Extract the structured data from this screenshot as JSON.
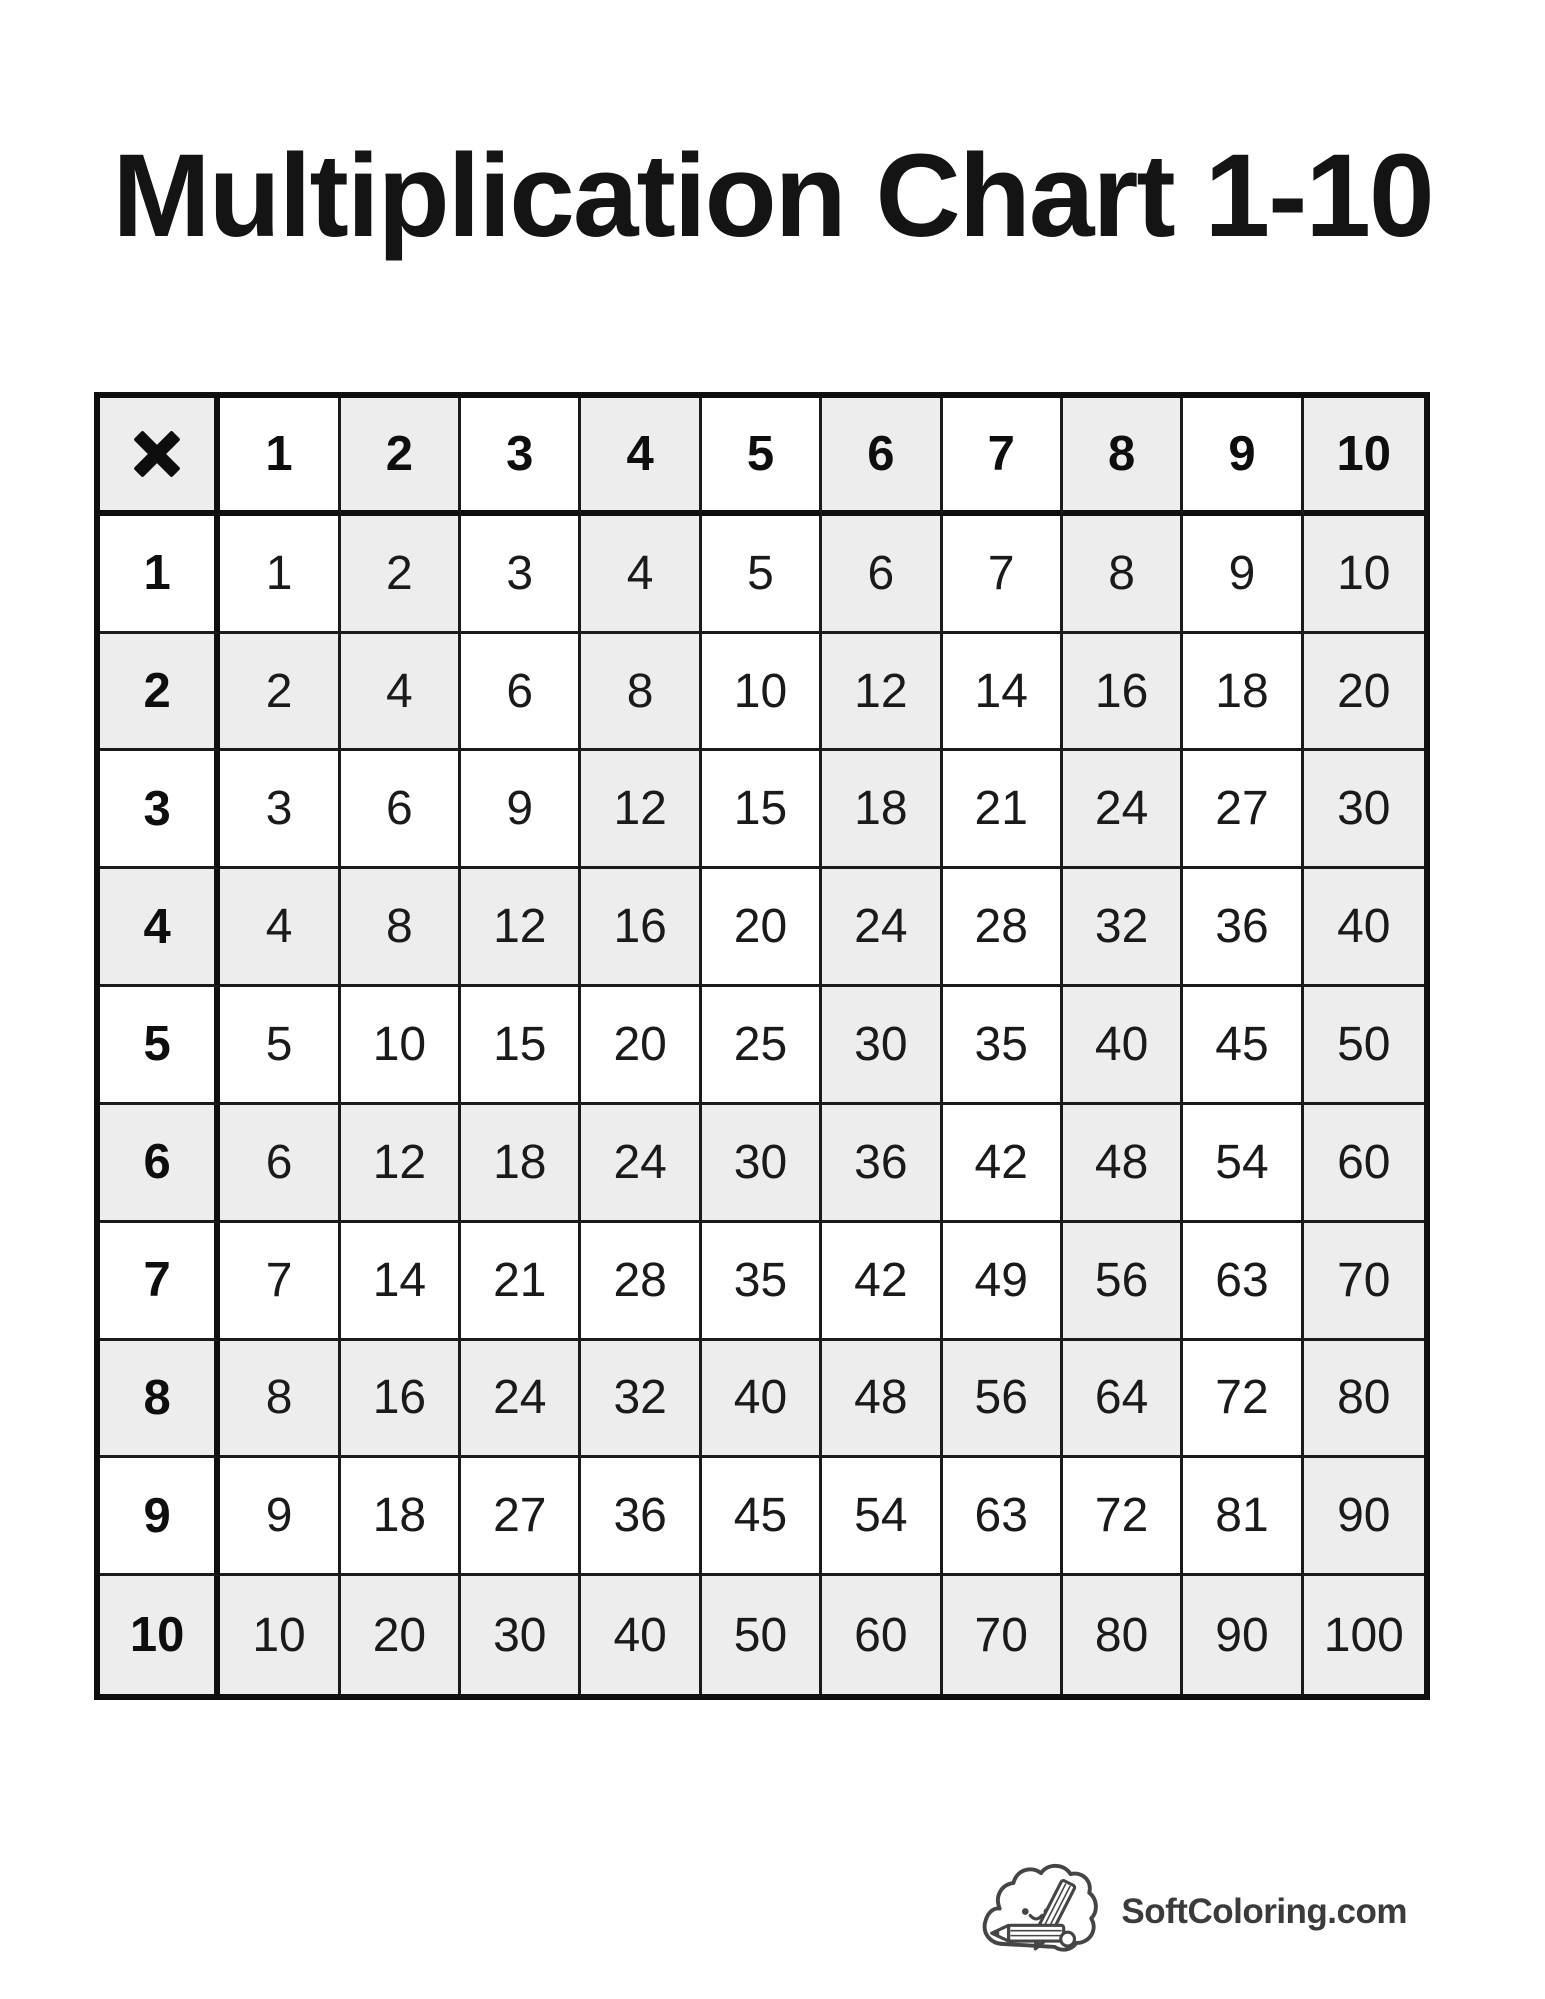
{
  "page": {
    "title": "Multiplication Chart 1-10",
    "footer": {
      "brand": "SoftColoring.com",
      "logo_icon": "cloud-pencil-icon"
    },
    "colors": {
      "background": "#ffffff",
      "text": "#141414",
      "shaded_cell": "#ededed",
      "white_cell": "#ffffff",
      "grid_border": "#0f0f0f",
      "inner_line": "#1b1b1b",
      "brand_text": "#3b3b3b"
    }
  },
  "chart_data": {
    "type": "table",
    "title": "Multiplication Chart 1-10",
    "operator_symbol": "×",
    "column_headers": [
      1,
      2,
      3,
      4,
      5,
      6,
      7,
      8,
      9,
      10
    ],
    "row_headers": [
      1,
      2,
      3,
      4,
      5,
      6,
      7,
      8,
      9,
      10
    ],
    "rows": [
      [
        1,
        2,
        3,
        4,
        5,
        6,
        7,
        8,
        9,
        10
      ],
      [
        2,
        4,
        6,
        8,
        10,
        12,
        14,
        16,
        18,
        20
      ],
      [
        3,
        6,
        9,
        12,
        15,
        18,
        21,
        24,
        27,
        30
      ],
      [
        4,
        8,
        12,
        16,
        20,
        24,
        28,
        32,
        36,
        40
      ],
      [
        5,
        10,
        15,
        20,
        25,
        30,
        35,
        40,
        45,
        50
      ],
      [
        6,
        12,
        18,
        24,
        30,
        36,
        42,
        48,
        54,
        60
      ],
      [
        7,
        14,
        21,
        28,
        35,
        42,
        49,
        56,
        63,
        70
      ],
      [
        8,
        16,
        24,
        32,
        40,
        48,
        56,
        64,
        72,
        80
      ],
      [
        9,
        18,
        27,
        36,
        45,
        54,
        63,
        72,
        81,
        90
      ],
      [
        10,
        20,
        30,
        40,
        50,
        60,
        70,
        80,
        90,
        100
      ]
    ],
    "shaded_cells": [
      [
        1,
        0,
        1,
        0,
        1,
        0,
        1,
        0,
        1,
        0,
        1
      ],
      [
        0,
        0,
        1,
        0,
        1,
        0,
        1,
        0,
        1,
        0,
        1
      ],
      [
        1,
        1,
        1,
        0,
        1,
        0,
        1,
        0,
        1,
        0,
        1
      ],
      [
        0,
        0,
        0,
        0,
        1,
        0,
        1,
        0,
        1,
        0,
        1
      ],
      [
        1,
        1,
        1,
        1,
        1,
        0,
        1,
        0,
        1,
        0,
        1
      ],
      [
        0,
        0,
        0,
        0,
        0,
        0,
        1,
        0,
        1,
        0,
        1
      ],
      [
        1,
        1,
        1,
        1,
        1,
        1,
        1,
        0,
        1,
        0,
        1
      ],
      [
        0,
        0,
        0,
        0,
        0,
        0,
        0,
        0,
        1,
        0,
        1
      ],
      [
        1,
        1,
        1,
        1,
        1,
        1,
        1,
        1,
        1,
        0,
        1
      ],
      [
        0,
        0,
        0,
        0,
        0,
        0,
        0,
        0,
        0,
        0,
        1
      ],
      [
        1,
        1,
        1,
        1,
        1,
        1,
        1,
        1,
        1,
        1,
        1
      ]
    ]
  }
}
